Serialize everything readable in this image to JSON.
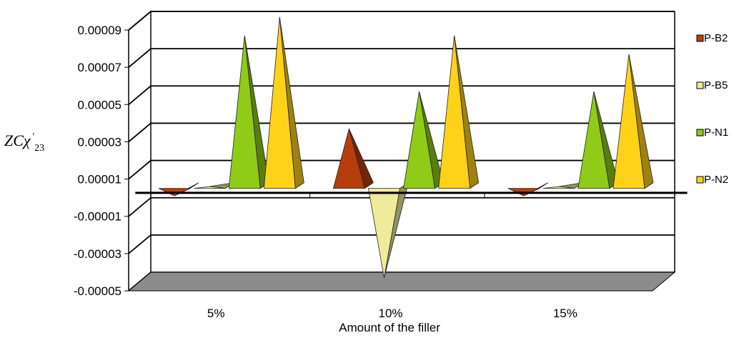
{
  "chart_data": {
    "type": "bar",
    "style": "3d-pyramid",
    "categories": [
      "5%",
      "10%",
      "15%"
    ],
    "xlabel": "Amount of the filler",
    "ylabel": {
      "base": "ZCχ",
      "superscript": "'",
      "subscript": "23"
    },
    "ylim": [
      -5e-05,
      9e-05
    ],
    "yticks": [
      "0.00009",
      "0.00007",
      "0.00005",
      "0.00003",
      "0.00001",
      "-0.00001",
      "-0.00003",
      "-0.00005"
    ],
    "grid": true,
    "legend_position": "right",
    "series": [
      {
        "name": "P-B2",
        "color": "#B53E0C",
        "values": [
          -4e-06,
          3.2e-05,
          -4e-06
        ]
      },
      {
        "name": "P-B5",
        "color": "#EFEB9A",
        "values": [
          1e-06,
          -4.8e-05,
          1e-06
        ]
      },
      {
        "name": "P-N1",
        "color": "#8FCB17",
        "values": [
          8.2e-05,
          5.2e-05,
          5.2e-05
        ]
      },
      {
        "name": "P-N2",
        "color": "#FFD21A",
        "values": [
          9.2e-05,
          8.2e-05,
          7.2e-05
        ]
      }
    ],
    "floor_color": "#8C8C8C"
  }
}
